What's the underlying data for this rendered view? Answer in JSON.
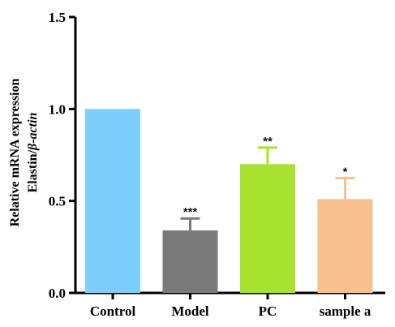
{
  "chart_data": {
    "type": "bar",
    "categories": [
      "Control",
      "Model",
      "PC",
      "sample a"
    ],
    "values": [
      1.0,
      0.34,
      0.7,
      0.51
    ],
    "error": [
      0,
      0.065,
      0.09,
      0.115
    ],
    "significance": [
      "",
      "***",
      "**",
      "*"
    ],
    "colors": [
      "#7ECEFD",
      "#7A7A7A",
      "#A6E22E",
      "#F7C08F"
    ],
    "ylabel_line1": "Relative mRNA expression",
    "ylabel_gene": "Elastin/",
    "ylabel_ref": "β-actin",
    "ylim": [
      0,
      1.5
    ],
    "yticks": [
      0.0,
      0.5,
      1.0,
      1.5
    ],
    "ytick_labels": [
      "0.0",
      "0.5",
      "1.0",
      "1.5"
    ],
    "xlabel": "",
    "title": "",
    "grid": false,
    "legend": "none"
  }
}
